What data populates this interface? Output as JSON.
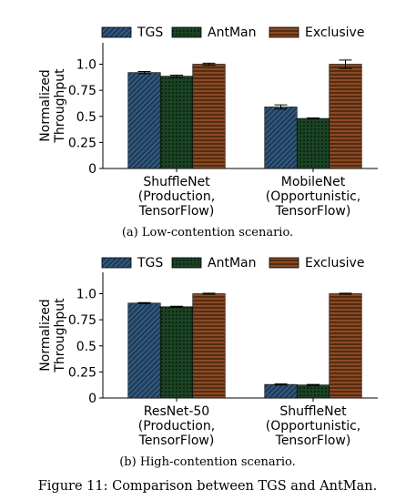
{
  "figure_caption": "Figure 11: Comparison between TGS and AntMan.",
  "colors": {
    "TGS": "#1f3f5f",
    "AntMan": "#1f4f2a",
    "Exclusive": "#7a3f1f",
    "axis": "#000000"
  },
  "chart_data": [
    {
      "type": "bar",
      "caption": "(a) Low-contention scenario.",
      "ylabel": "Normalized\nThroughput",
      "ylim": [
        0,
        1.1
      ],
      "yticks": [
        "0",
        "0.25",
        "0.5",
        "0.75",
        "1.0"
      ],
      "legend": [
        "TGS",
        "AntMan",
        "Exclusive"
      ],
      "legend_placement": "top",
      "categories": [
        "ShuffleNet\n(Production,\nTensorFlow)",
        "MobileNet\n(Opportunistic,\nTensorFlow)"
      ],
      "series": [
        {
          "name": "TGS",
          "values": [
            0.92,
            0.59
          ],
          "errors": [
            0.01,
            0.02
          ]
        },
        {
          "name": "AntMan",
          "values": [
            0.885,
            0.48
          ],
          "errors": [
            0.01,
            0.005
          ]
        },
        {
          "name": "Exclusive",
          "values": [
            1.0,
            1.0
          ],
          "errors": [
            0.01,
            0.04
          ]
        }
      ]
    },
    {
      "type": "bar",
      "caption": "(b) High-contention scenario.",
      "ylabel": "Normalized\nThroughput",
      "ylim": [
        0,
        1.1
      ],
      "yticks": [
        "0",
        "0.25",
        "0.5",
        "0.75",
        "1.0"
      ],
      "legend": [
        "TGS",
        "AntMan",
        "Exclusive"
      ],
      "legend_placement": "top",
      "categories": [
        "ResNet-50\n(Production,\nTensorFlow)",
        "ShuffleNet\n(Opportunistic,\nTensorFlow)"
      ],
      "series": [
        {
          "name": "TGS",
          "values": [
            0.91,
            0.13
          ],
          "errors": [
            0.005,
            0.005
          ]
        },
        {
          "name": "AntMan",
          "values": [
            0.875,
            0.125
          ],
          "errors": [
            0.005,
            0.005
          ]
        },
        {
          "name": "Exclusive",
          "values": [
            1.0,
            1.0
          ],
          "errors": [
            0.005,
            0.005
          ]
        }
      ]
    }
  ]
}
